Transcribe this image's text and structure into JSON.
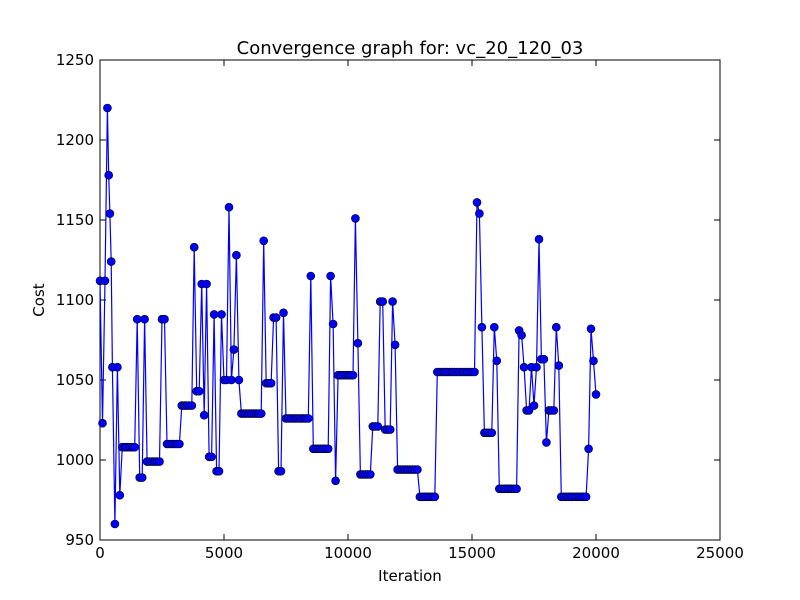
{
  "chart_data": {
    "type": "line",
    "title": "Convergence graph for: vc_20_120_03",
    "xlabel": "Iteration",
    "ylabel": "Cost",
    "xlim": [
      0,
      25000
    ],
    "ylim": [
      950,
      1250
    ],
    "xticks": [
      0,
      5000,
      10000,
      15000,
      20000,
      25000
    ],
    "xtick_labels": [
      "0",
      "5000",
      "10000",
      "15000",
      "20000",
      "25000"
    ],
    "yticks": [
      950,
      1000,
      1050,
      1100,
      1150,
      1200,
      1250
    ],
    "ytick_labels": [
      "950",
      "1000",
      "1050",
      "1100",
      "1150",
      "1200",
      "1250"
    ],
    "grid": false,
    "legend": false,
    "series": [
      {
        "color": "#0000ff",
        "marker": "circle",
        "x": [
          0,
          100,
          200,
          300,
          350,
          400,
          450,
          500,
          600,
          700,
          800,
          900,
          1000,
          1100,
          1200,
          1300,
          1400,
          1500,
          1600,
          1700,
          1800,
          1900,
          2000,
          2100,
          2200,
          2300,
          2400,
          2500,
          2600,
          2700,
          2800,
          2900,
          3000,
          3100,
          3200,
          3300,
          3400,
          3500,
          3600,
          3700,
          3800,
          3900,
          4000,
          4100,
          4200,
          4300,
          4400,
          4500,
          4600,
          4700,
          4800,
          4900,
          5000,
          5100,
          5200,
          5300,
          5400,
          5500,
          5600,
          5700,
          5800,
          5900,
          6000,
          6100,
          6200,
          6300,
          6400,
          6500,
          6600,
          6700,
          6800,
          6900,
          7000,
          7100,
          7200,
          7300,
          7400,
          7500,
          7600,
          7700,
          7800,
          7900,
          8000,
          8100,
          8200,
          8300,
          8400,
          8500,
          8600,
          8700,
          8800,
          8900,
          9000,
          9100,
          9200,
          9300,
          9400,
          9500,
          9600,
          9700,
          9800,
          9900,
          10000,
          10100,
          10200,
          10300,
          10400,
          10500,
          10600,
          10700,
          10800,
          10900,
          11000,
          11100,
          11200,
          11300,
          11400,
          11500,
          11600,
          11700,
          11800,
          11900,
          12000,
          12100,
          12200,
          12300,
          12400,
          12500,
          12600,
          12700,
          12800,
          12900,
          13000,
          13100,
          13200,
          13300,
          13400,
          13500,
          13600,
          13700,
          13800,
          13900,
          14000,
          14100,
          14200,
          14300,
          14400,
          14500,
          14600,
          14700,
          14800,
          14900,
          15000,
          15100,
          15200,
          15300,
          15400,
          15500,
          15600,
          15700,
          15800,
          15900,
          16000,
          16100,
          16200,
          16300,
          16400,
          16500,
          16600,
          16700,
          16800,
          16900,
          17000,
          17100,
          17200,
          17300,
          17400,
          17500,
          17600,
          17700,
          17800,
          17900,
          18000,
          18100,
          18200,
          18300,
          18400,
          18500,
          18600,
          18700,
          18800,
          18900,
          19000,
          19100,
          19200,
          19300,
          19400,
          19500,
          19600,
          19700,
          19800,
          19900,
          20000
        ],
        "y": [
          1112,
          1023,
          1112,
          1220,
          1178,
          1154,
          1124,
          1058,
          960,
          1058,
          978,
          1008,
          1008,
          1008,
          1008,
          1008,
          1008,
          1088,
          989,
          989,
          1088,
          999,
          999,
          999,
          999,
          999,
          999,
          1088,
          1088,
          1010,
          1010,
          1010,
          1010,
          1010,
          1010,
          1034,
          1034,
          1034,
          1034,
          1034,
          1133,
          1043,
          1043,
          1110,
          1028,
          1110,
          1002,
          1002,
          1091,
          993,
          993,
          1091,
          1050,
          1050,
          1158,
          1050,
          1069,
          1128,
          1050,
          1029,
          1029,
          1029,
          1029,
          1029,
          1029,
          1029,
          1029,
          1029,
          1137,
          1048,
          1048,
          1048,
          1089,
          1089,
          993,
          993,
          1092,
          1026,
          1026,
          1026,
          1026,
          1026,
          1026,
          1026,
          1026,
          1026,
          1026,
          1115,
          1007,
          1007,
          1007,
          1007,
          1007,
          1007,
          1007,
          1115,
          1085,
          987,
          1053,
          1053,
          1053,
          1053,
          1053,
          1053,
          1053,
          1151,
          1073,
          991,
          991,
          991,
          991,
          991,
          1021,
          1021,
          1021,
          1099,
          1099,
          1019,
          1019,
          1019,
          1099,
          1072,
          994,
          994,
          994,
          994,
          994,
          994,
          994,
          994,
          994,
          977,
          977,
          977,
          977,
          977,
          977,
          977,
          1055,
          1055,
          1055,
          1055,
          1055,
          1055,
          1055,
          1055,
          1055,
          1055,
          1055,
          1055,
          1055,
          1055,
          1055,
          1055,
          1161,
          1154,
          1083,
          1017,
          1017,
          1017,
          1017,
          1083,
          1062,
          982,
          982,
          982,
          982,
          982,
          982,
          982,
          982,
          1081,
          1078,
          1058,
          1031,
          1031,
          1058,
          1034,
          1058,
          1138,
          1063,
          1063,
          1011,
          1031,
          1031,
          1031,
          1083,
          1059,
          977,
          977,
          977,
          977,
          977,
          977,
          977,
          977,
          977,
          977,
          977,
          1007,
          1082,
          1062,
          1041
        ]
      }
    ]
  }
}
